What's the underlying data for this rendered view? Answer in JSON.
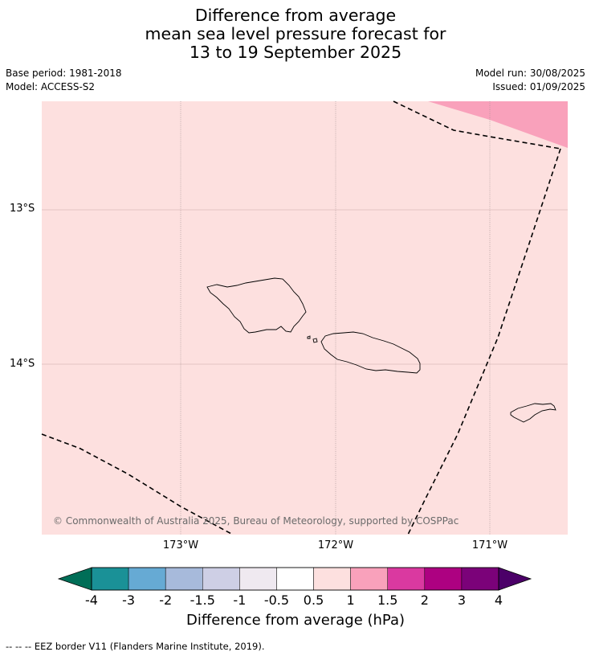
{
  "title": {
    "line1": "Difference from average",
    "line2": "mean sea level pressure forecast for",
    "line3": "13 to 19 September 2025"
  },
  "meta": {
    "base_period": "Base period: 1981-2018",
    "model": "Model: ACCESS-S2",
    "model_run": "Model run: 30/08/2025",
    "issued": "Issued: 01/09/2025"
  },
  "map": {
    "lat_labels": [
      "13°S",
      "14°S"
    ],
    "lon_labels": [
      "173°W",
      "172°W",
      "171°W"
    ],
    "background_color": "#fde0df",
    "high_anomaly_color": "#f9a1bb",
    "copyright": "© Commonwealth of Australia 2025, Bureau of Meteorology, supported by COSPPac"
  },
  "colorbar": {
    "ticks": [
      "-4",
      "-3",
      "-2",
      "-1.5",
      "-1",
      "-0.5",
      "0.5",
      "1",
      "1.5",
      "2",
      "3",
      "4"
    ],
    "colors": [
      "#1a9197",
      "#66aad4",
      "#a7badb",
      "#cecfe5",
      "#efe9f0",
      "#ffffff",
      "#fde0df",
      "#f9a1bb",
      "#da39a0",
      "#ad0181",
      "#7b0279"
    ],
    "under_color": "#006e57",
    "over_color": "#4b0068",
    "label": "Difference from average (hPa)"
  },
  "footer": "--  --  -- EEZ border V11 (Flanders Marine Institute, 2019)."
}
